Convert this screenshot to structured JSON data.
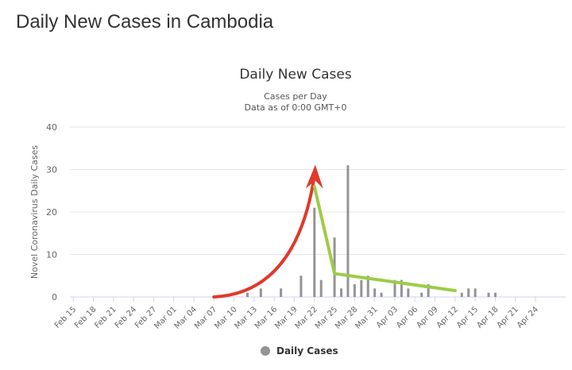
{
  "page": {
    "title": "Daily New Cases in Cambodia"
  },
  "chart_data": {
    "type": "bar",
    "title": "Daily New Cases",
    "subtitle_lines": [
      "Cases per Day",
      "Data as of 0:00 GMT+0"
    ],
    "xlabel": "",
    "ylabel": "Novel Coronavirus Daily Cases",
    "ylim": [
      0,
      40
    ],
    "yticks": [
      0,
      10,
      20,
      30,
      40
    ],
    "grid": true,
    "legend_position": "bottom-center",
    "bar_color": "#949494",
    "start_date": "2020-02-15",
    "x_tick_labels": [
      "Feb 15",
      "Feb 18",
      "Feb 21",
      "Feb 24",
      "Feb 27",
      "Mar 01",
      "Mar 04",
      "Mar 07",
      "Mar 10",
      "Mar 13",
      "Mar 16",
      "Mar 19",
      "Mar 22",
      "Mar 25",
      "Mar 28",
      "Mar 31",
      "Apr 03",
      "Apr 06",
      "Apr 09",
      "Apr 12",
      "Apr 15",
      "Apr 18",
      "Apr 21",
      "Apr 24"
    ],
    "series": [
      {
        "name": "Daily Cases",
        "values": [
          0,
          0,
          0,
          0,
          0,
          0,
          0,
          0,
          0,
          0,
          0,
          0,
          0,
          0,
          0,
          0,
          0,
          0,
          0,
          0,
          0,
          0,
          0,
          0,
          0,
          0,
          1,
          0,
          2,
          0,
          0,
          2,
          0,
          0,
          5,
          0,
          21,
          4,
          0,
          14,
          2,
          31,
          3,
          4,
          5,
          2,
          1,
          0,
          4,
          4,
          2,
          0,
          1,
          3,
          0,
          0,
          0,
          0,
          1,
          2,
          2,
          0,
          1,
          1,
          0,
          0,
          0,
          0,
          0,
          0,
          0,
          0,
          0,
          0
        ]
      }
    ],
    "annotations": [
      {
        "type": "curved-arrow",
        "color": "#e0392b",
        "from": [
          "Mar 07",
          0
        ],
        "to": [
          "Mar 22",
          30
        ]
      },
      {
        "type": "polyline",
        "color": "#9ccc47",
        "points": [
          [
            "Mar 22",
            26
          ],
          [
            "Mar 25",
            5.5
          ],
          [
            "Apr 12",
            1.5
          ]
        ]
      }
    ]
  }
}
